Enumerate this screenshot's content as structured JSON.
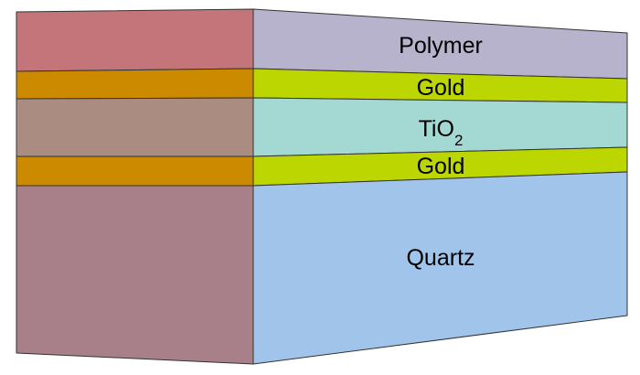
{
  "layers": [
    {
      "id": "polymer",
      "label": "Polymer",
      "label_sub": "",
      "front_color": "#c47579",
      "side_color": "#b8b3cc"
    },
    {
      "id": "gold-top",
      "label": "Gold",
      "label_sub": "",
      "front_color": "#cc8a00",
      "side_color": "#bbd600"
    },
    {
      "id": "tio2",
      "label": "TiO",
      "label_sub": "2",
      "front_color": "#aa8c80",
      "side_color": "#a3d8d3"
    },
    {
      "id": "gold-bottom",
      "label": "Gold",
      "label_sub": "",
      "front_color": "#cc8a00",
      "side_color": "#bbd600"
    },
    {
      "id": "quartz",
      "label": "Quartz",
      "label_sub": "",
      "front_color": "#a8808a",
      "side_color": "#a1c5ea"
    }
  ],
  "outline_color": "#333333"
}
